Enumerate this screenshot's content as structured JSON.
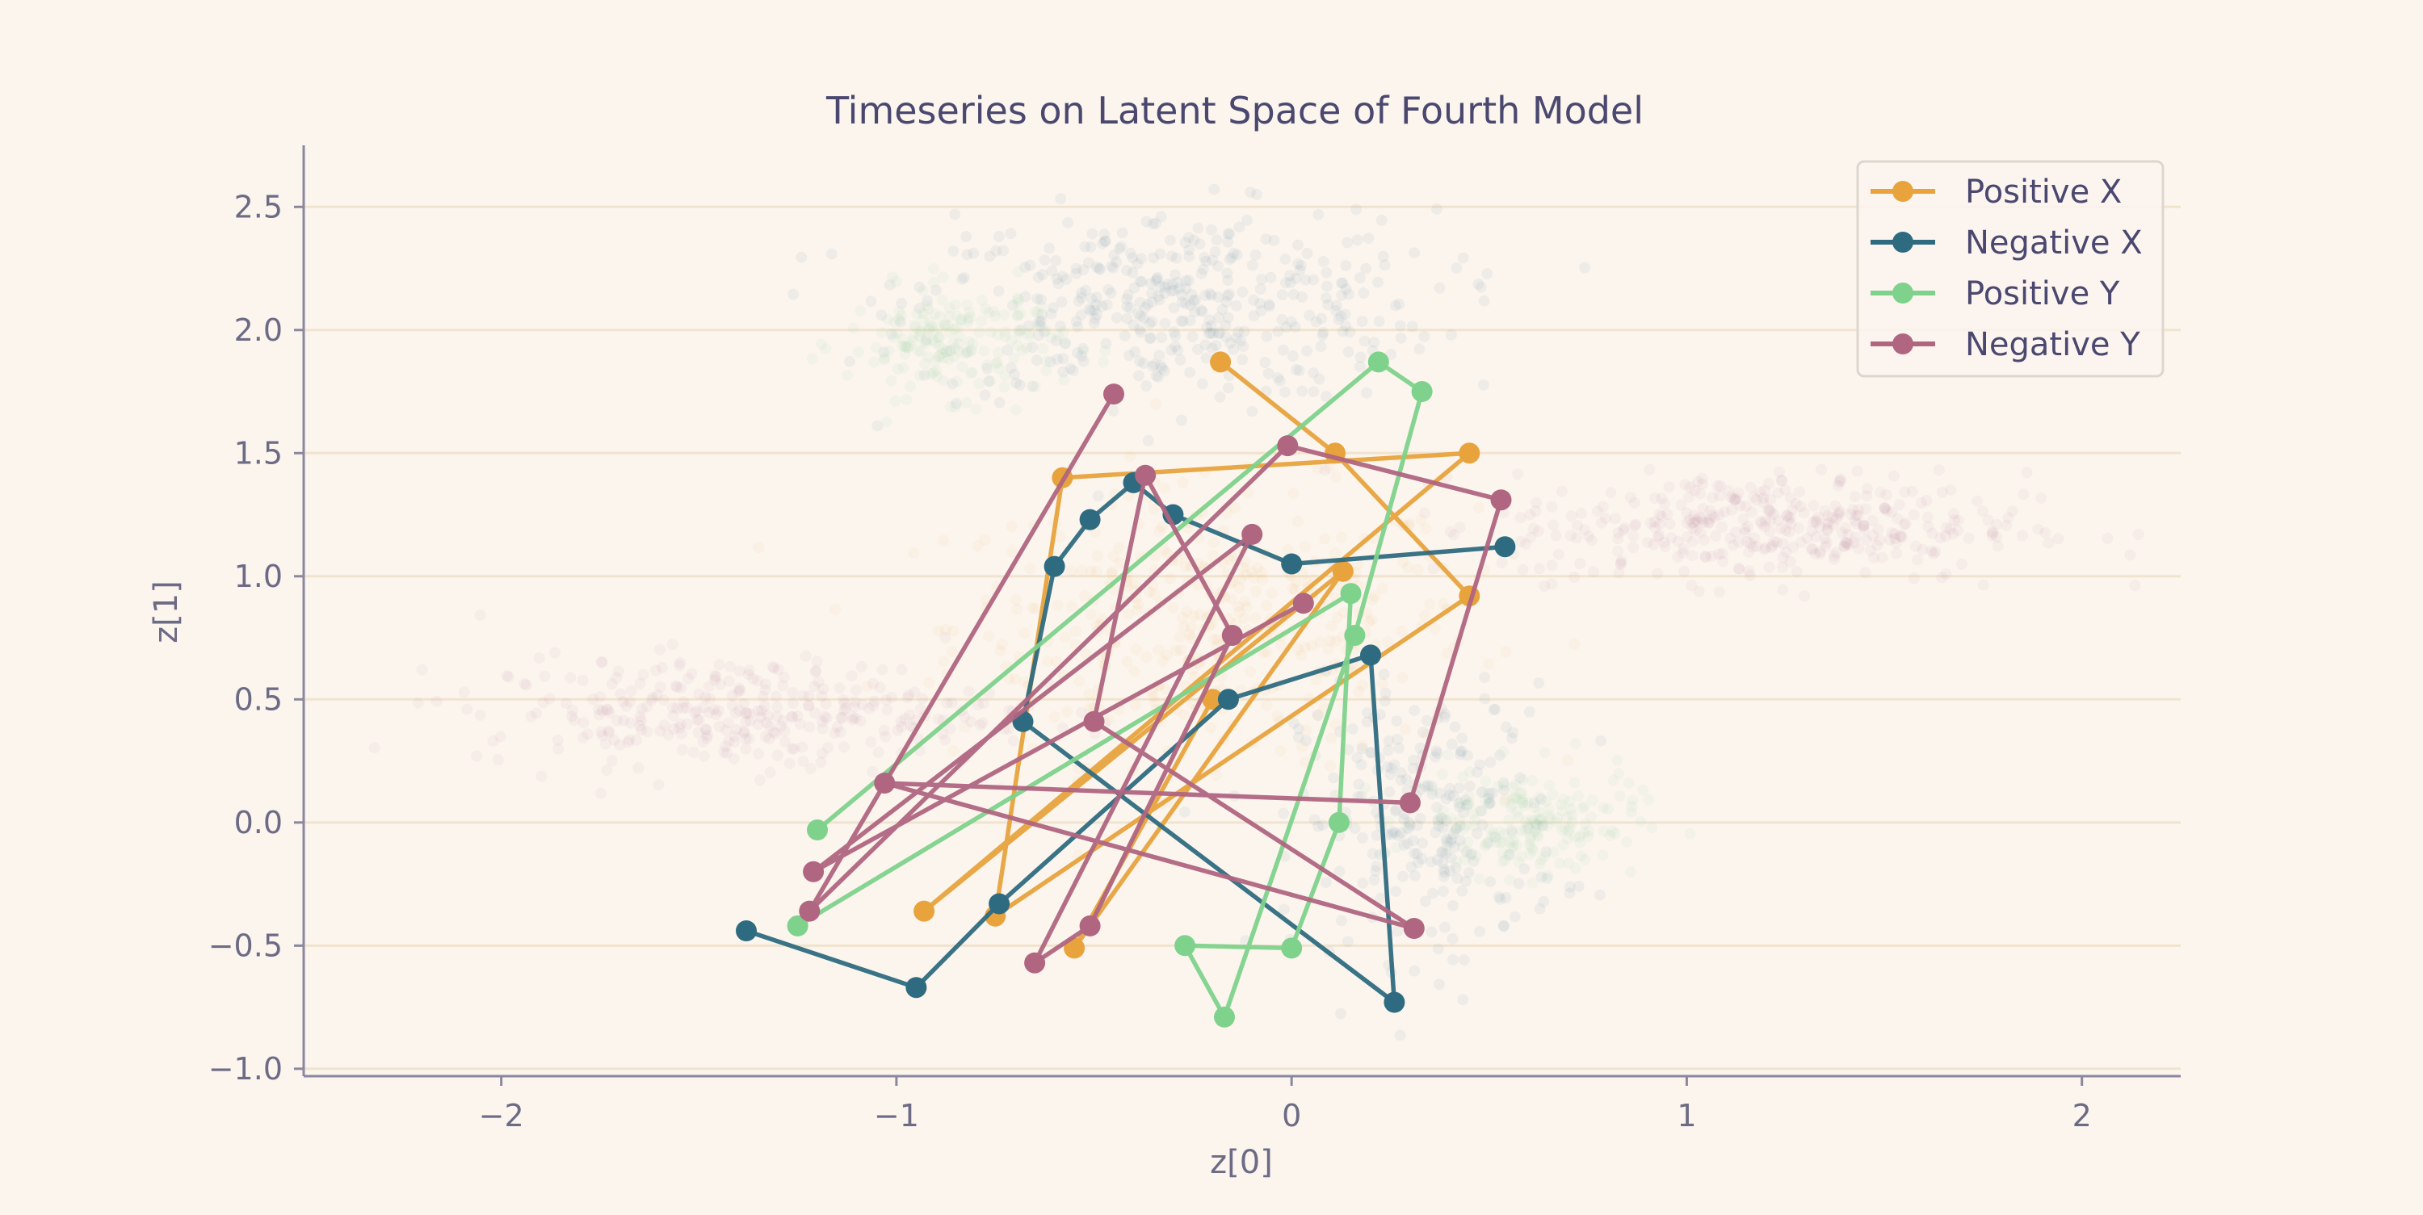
{
  "chart_data": {
    "type": "line",
    "title": "Timeseries on Latent Space of Fourth Model",
    "xlabel": "z[0]",
    "ylabel": "z[1]",
    "xlim": [
      -2.5,
      2.25
    ],
    "ylim": [
      -1.03,
      2.75
    ],
    "xticks": [
      -2,
      -1,
      0,
      1,
      2
    ],
    "xtick_labels": [
      "−2",
      "−1",
      "0",
      "1",
      "2"
    ],
    "yticks": [
      -1.0,
      -0.5,
      0.0,
      0.5,
      1.0,
      1.5,
      2.0,
      2.5
    ],
    "ytick_labels": [
      "−1.0",
      "−0.5",
      "0.0",
      "0.5",
      "1.0",
      "1.5",
      "2.0",
      "2.5"
    ],
    "grid": "horizontal",
    "legend": "top-right",
    "background_clouds": [
      {
        "color": "#e8a33d",
        "center": [
          -0.2,
          0.8
        ],
        "spread": [
          0.6,
          0.5
        ],
        "count": 420
      },
      {
        "color": "#2f6b80",
        "center": [
          -0.3,
          2.1
        ],
        "spread": [
          0.6,
          0.35
        ],
        "count": 420
      },
      {
        "color": "#2f6b80",
        "center": [
          0.35,
          0.0
        ],
        "spread": [
          0.3,
          0.5
        ],
        "count": 260
      },
      {
        "color": "#7fd28b",
        "center": [
          -0.85,
          1.95
        ],
        "spread": [
          0.25,
          0.2
        ],
        "count": 180
      },
      {
        "color": "#7fd28b",
        "center": [
          0.6,
          0.0
        ],
        "spread": [
          0.25,
          0.2
        ],
        "count": 180
      },
      {
        "color": "#b06580",
        "center": [
          1.2,
          1.2
        ],
        "spread": [
          0.6,
          0.2
        ],
        "count": 380
      },
      {
        "color": "#b06580",
        "center": [
          -1.4,
          0.45
        ],
        "spread": [
          0.6,
          0.2
        ],
        "count": 320
      }
    ],
    "series": [
      {
        "name": "Positive X",
        "color": "#e8a33d",
        "x": [
          -0.18,
          0.11,
          0.45,
          -0.75,
          -0.58,
          0.45,
          -0.93,
          0.13,
          -0.55,
          -0.2
        ],
        "y": [
          1.87,
          1.5,
          0.92,
          -0.38,
          1.4,
          1.5,
          -0.36,
          1.02,
          -0.51,
          0.5
        ]
      },
      {
        "name": "Negative X",
        "color": "#2f6b80",
        "x": [
          -1.38,
          -0.95,
          -0.74,
          -0.16,
          0.2,
          0.26,
          -0.68,
          -0.6,
          -0.51,
          -0.4,
          -0.3,
          0.0,
          0.54
        ],
        "y": [
          -0.44,
          -0.67,
          -0.33,
          0.5,
          0.68,
          -0.73,
          0.41,
          1.04,
          1.23,
          1.38,
          1.25,
          1.05,
          1.12
        ]
      },
      {
        "name": "Positive Y",
        "color": "#7fd28b",
        "x": [
          -1.2,
          0.22,
          0.33,
          0.16,
          -0.17,
          -0.27,
          0.0,
          0.12,
          0.15,
          -1.25
        ],
        "y": [
          -0.03,
          1.87,
          1.75,
          0.76,
          -0.79,
          -0.5,
          -0.51,
          0.0,
          0.93,
          -0.42
        ]
      },
      {
        "name": "Negative Y",
        "color": "#b06580",
        "x": [
          -0.45,
          -1.22,
          -0.01,
          0.53,
          0.3,
          -1.03,
          0.31,
          -0.5,
          -0.37,
          -0.15,
          -0.51,
          -0.65,
          -0.1,
          -1.21,
          0.03
        ],
        "y": [
          1.74,
          -0.36,
          1.53,
          1.31,
          0.08,
          0.16,
          -0.43,
          0.41,
          1.41,
          0.76,
          -0.42,
          -0.57,
          1.17,
          -0.2,
          0.89
        ]
      }
    ]
  }
}
